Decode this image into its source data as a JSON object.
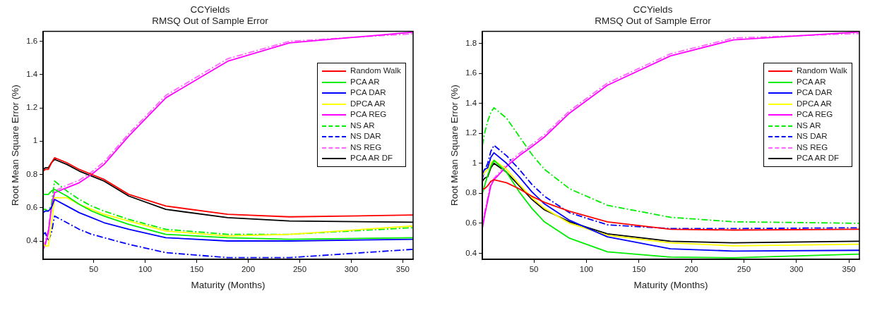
{
  "chart_data": [
    {
      "type": "line",
      "title": "CCYields",
      "subtitle": "RMSQ Out of Sample Error",
      "xlabel": "Maturity (Months)",
      "ylabel": "Root Mean Square Error (%)",
      "x": [
        1,
        3,
        6,
        9,
        12,
        24,
        36,
        48,
        60,
        84,
        120,
        180,
        240,
        360
      ],
      "xlim": [
        1,
        360
      ],
      "xticks": [
        50,
        100,
        150,
        200,
        250,
        300,
        350
      ],
      "ylim": [
        0.29,
        1.66
      ],
      "yticks": [
        0.4,
        0.6,
        0.8,
        1,
        1.2,
        1.4,
        1.6
      ],
      "grid": false,
      "legend": "top right",
      "marker": "none",
      "series": [
        {
          "name": "Random Walk",
          "color": "#ff0000",
          "line_style": "solid",
          "values": [
            0.82,
            0.83,
            0.83,
            0.87,
            0.9,
            0.87,
            0.83,
            0.8,
            0.77,
            0.68,
            0.61,
            0.56,
            0.545,
            0.556
          ]
        },
        {
          "name": "PCA AR",
          "color": "#00ee00",
          "line_style": "solid",
          "values": [
            0.68,
            0.68,
            0.68,
            0.7,
            0.71,
            0.67,
            0.62,
            0.58,
            0.55,
            0.5,
            0.44,
            0.42,
            0.41,
            0.42
          ]
        },
        {
          "name": "PCA DAR",
          "color": "#0000ff",
          "line_style": "solid",
          "values": [
            0.57,
            0.58,
            0.58,
            0.6,
            0.65,
            0.61,
            0.57,
            0.54,
            0.51,
            0.47,
            0.42,
            0.4,
            0.4,
            0.41
          ]
        },
        {
          "name": "DPCA AR",
          "color": "#ffff00",
          "line_style": "solid",
          "values": [
            0.38,
            0.37,
            0.37,
            0.5,
            0.66,
            0.66,
            0.62,
            0.59,
            0.56,
            0.52,
            0.46,
            0.43,
            0.44,
            0.49
          ]
        },
        {
          "name": "PCA REG",
          "color": "#ff00ff",
          "line_style": "solid",
          "values": [
            0.35,
            0.38,
            0.45,
            0.6,
            0.69,
            0.72,
            0.75,
            0.8,
            0.86,
            1.03,
            1.26,
            1.48,
            1.59,
            1.655
          ]
        },
        {
          "name": "NS AR",
          "color": "#00ee00",
          "line_style": "dashed",
          "values": [
            0.59,
            0.59,
            0.58,
            0.62,
            0.76,
            0.7,
            0.65,
            0.61,
            0.58,
            0.53,
            0.47,
            0.44,
            0.44,
            0.48
          ]
        },
        {
          "name": "NS DAR",
          "color": "#0000ff",
          "line_style": "dashed",
          "values": [
            0.44,
            0.45,
            0.4,
            0.45,
            0.55,
            0.51,
            0.47,
            0.44,
            0.42,
            0.38,
            0.33,
            0.3,
            0.3,
            0.35
          ]
        },
        {
          "name": "NS REG",
          "color": "#ff66ff",
          "line_style": "dashed",
          "values": [
            0.36,
            0.4,
            0.47,
            0.62,
            0.7,
            0.735,
            0.765,
            0.815,
            0.875,
            1.045,
            1.275,
            1.495,
            1.6,
            1.645
          ]
        },
        {
          "name": "PCA AR DF",
          "color": "#000000",
          "line_style": "solid",
          "values": [
            0.83,
            0.84,
            0.84,
            0.87,
            0.89,
            0.86,
            0.82,
            0.79,
            0.76,
            0.67,
            0.59,
            0.54,
            0.52,
            0.513
          ]
        }
      ]
    },
    {
      "type": "line",
      "title": "CCYields",
      "subtitle": "RMSQ Out of Sample Error",
      "xlabel": "Maturity (Months)",
      "ylabel": "Root Mean Square Error (%)",
      "x": [
        1,
        3,
        6,
        9,
        12,
        24,
        36,
        48,
        60,
        84,
        120,
        180,
        240,
        360
      ],
      "xlim": [
        1,
        360
      ],
      "xticks": [
        50,
        100,
        150,
        200,
        250,
        300,
        350
      ],
      "ylim": [
        0.36,
        1.88
      ],
      "yticks": [
        0.4,
        0.6,
        0.8,
        1,
        1.2,
        1.4,
        1.6,
        1.8
      ],
      "grid": false,
      "legend": "top right",
      "marker": "none",
      "series": [
        {
          "name": "Random Walk",
          "color": "#ff0000",
          "line_style": "solid",
          "values": [
            0.83,
            0.83,
            0.85,
            0.88,
            0.89,
            0.87,
            0.83,
            0.78,
            0.74,
            0.68,
            0.61,
            0.56,
            0.555,
            0.56
          ]
        },
        {
          "name": "PCA AR",
          "color": "#00ee00",
          "line_style": "solid",
          "values": [
            0.8,
            0.85,
            0.92,
            0.98,
            1.02,
            0.94,
            0.81,
            0.7,
            0.61,
            0.5,
            0.41,
            0.375,
            0.37,
            0.395
          ]
        },
        {
          "name": "PCA DAR",
          "color": "#0000ff",
          "line_style": "solid",
          "values": [
            0.93,
            0.96,
            0.97,
            1.04,
            1.07,
            1.0,
            0.91,
            0.81,
            0.73,
            0.62,
            0.51,
            0.43,
            0.415,
            0.42
          ]
        },
        {
          "name": "DPCA AR",
          "color": "#ffff00",
          "line_style": "solid",
          "values": [
            0.92,
            0.94,
            0.96,
            1.0,
            1.02,
            0.96,
            0.86,
            0.77,
            0.7,
            0.6,
            0.52,
            0.47,
            0.45,
            0.46
          ]
        },
        {
          "name": "PCA REG",
          "color": "#ff00ff",
          "line_style": "solid",
          "values": [
            0.57,
            0.65,
            0.75,
            0.85,
            0.89,
            0.98,
            1.05,
            1.11,
            1.175,
            1.335,
            1.52,
            1.716,
            1.823,
            1.875
          ]
        },
        {
          "name": "NS AR",
          "color": "#00ee00",
          "line_style": "dashed",
          "values": [
            1.12,
            1.2,
            1.28,
            1.34,
            1.37,
            1.3,
            1.18,
            1.06,
            0.96,
            0.83,
            0.72,
            0.64,
            0.61,
            0.6
          ]
        },
        {
          "name": "NS DAR",
          "color": "#0000ff",
          "line_style": "dashed",
          "values": [
            0.9,
            0.95,
            1.0,
            1.08,
            1.12,
            1.05,
            0.96,
            0.86,
            0.78,
            0.67,
            0.59,
            0.565,
            0.565,
            0.57
          ]
        },
        {
          "name": "NS REG",
          "color": "#ff66ff",
          "line_style": "dashed",
          "values": [
            0.58,
            0.67,
            0.77,
            0.87,
            0.9,
            0.995,
            1.065,
            1.125,
            1.19,
            1.35,
            1.535,
            1.73,
            1.835,
            1.865
          ]
        },
        {
          "name": "PCA AR DF",
          "color": "#000000",
          "line_style": "solid",
          "values": [
            0.88,
            0.9,
            0.91,
            0.97,
            1.0,
            0.94,
            0.85,
            0.76,
            0.69,
            0.61,
            0.53,
            0.48,
            0.47,
            0.48
          ]
        }
      ]
    }
  ]
}
